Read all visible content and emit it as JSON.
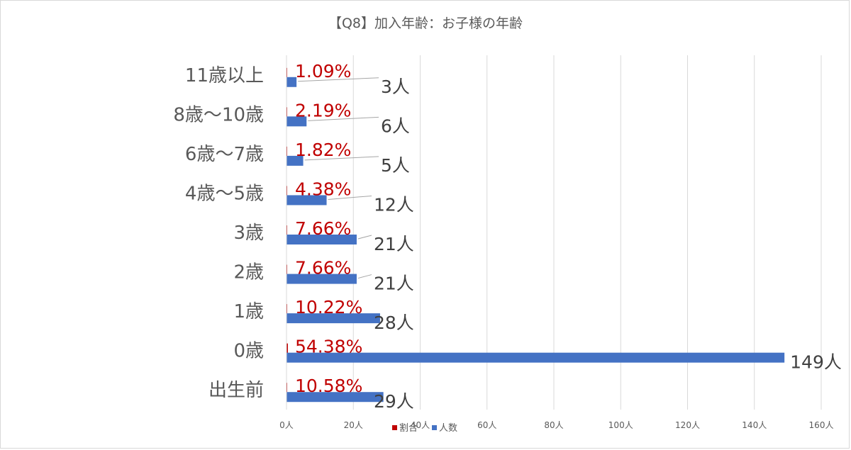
{
  "chart_data": {
    "type": "bar",
    "orientation": "horizontal",
    "title": "【Q8】加入年齢：お子様の年齢",
    "categories": [
      "11歳以上",
      "8歳～10歳",
      "6歳～7歳",
      "4歳～5歳",
      "3歳",
      "2歳",
      "1歳",
      "0歳",
      "出生前"
    ],
    "series": [
      {
        "name": "割合",
        "color": "#c00000",
        "values": [
          1.09,
          2.19,
          1.82,
          4.38,
          7.66,
          7.66,
          10.22,
          54.38,
          10.58
        ],
        "labels": [
          "1.09%",
          "2.19%",
          "1.82%",
          "4.38%",
          "7.66%",
          "7.66%",
          "10.22%",
          "54.38%",
          "10.58%"
        ]
      },
      {
        "name": "人数",
        "color": "#4472c4",
        "values": [
          3,
          6,
          5,
          12,
          21,
          21,
          28,
          149,
          29
        ],
        "labels": [
          "3人",
          "6人",
          "5人",
          "12人",
          "21人",
          "21人",
          "28人",
          "149人",
          "29人"
        ]
      }
    ],
    "xlim": [
      0,
      160
    ],
    "xticks": [
      "0人",
      "20人",
      "40人",
      "60人",
      "80人",
      "100人",
      "120人",
      "140人",
      "160人"
    ],
    "grid": true,
    "legend": "bottom"
  }
}
